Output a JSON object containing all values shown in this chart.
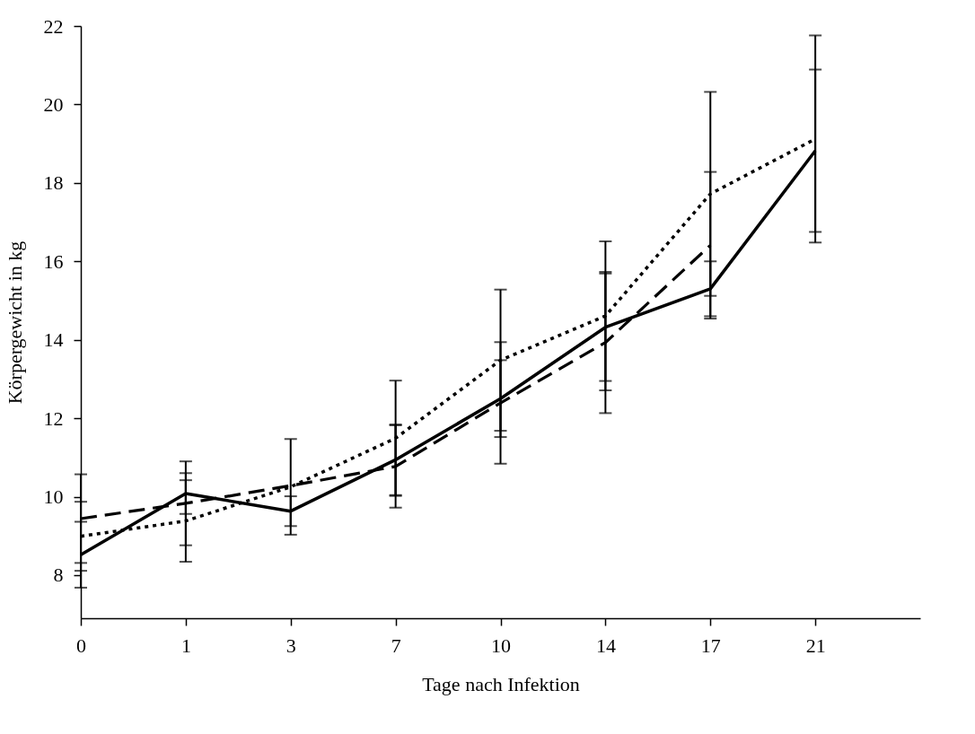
{
  "chart_data": {
    "type": "line",
    "xlabel": "Tage nach Infektion",
    "ylabel": "Körpergewicht in kg",
    "categories": [
      "0",
      "1",
      "3",
      "7",
      "10",
      "14",
      "17",
      "21"
    ],
    "series": [
      {
        "color": "#000000",
        "line_style": "solid",
        "values": [
          8.52,
          10.08,
          9.63,
          10.94,
          12.5,
          14.32,
          15.3,
          18.82
        ],
        "errors": [
          0.84,
          0.52,
          0.38,
          0.9,
          0.98,
          1.37,
          0.7,
          2.07
        ]
      },
      {
        "color": "#000000",
        "line_style": "dashed",
        "values": [
          9.44,
          9.83,
          10.28,
          10.77,
          12.39,
          13.93,
          16.41,
          null
        ],
        "errors": [
          1.13,
          1.07,
          null,
          1.05,
          1.55,
          1.8,
          1.87,
          null
        ]
      },
      {
        "color": "#000000",
        "line_style": "dotted",
        "values": [
          8.99,
          9.38,
          10.25,
          11.49,
          13.48,
          14.61,
          17.72,
          19.12
        ],
        "errors": [
          0.88,
          1.04,
          1.22,
          1.47,
          1.8,
          1.9,
          2.6,
          2.64
        ]
      }
    ],
    "ylim": [
      6.9,
      22
    ],
    "yticks": [
      8,
      10,
      12,
      14,
      16,
      18,
      20,
      22
    ],
    "grid": false,
    "marker": "none"
  }
}
